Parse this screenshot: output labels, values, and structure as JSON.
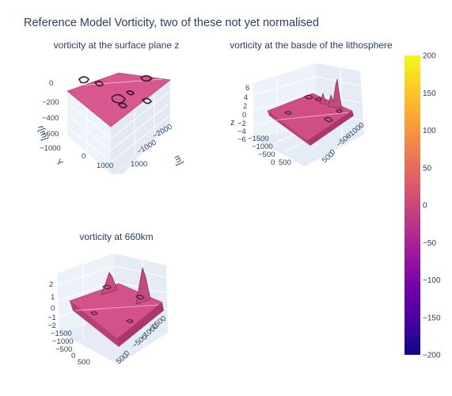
{
  "chart_data": {
    "type": "surface",
    "title": "Reference Model Vorticity, two of these not yet normalised",
    "colorscale": [
      "#0d0887",
      "#46039f",
      "#7201a8",
      "#9c179e",
      "#bd3786",
      "#d8576b",
      "#ed7953",
      "#fb9f3a",
      "#fdca26",
      "#f0f921"
    ],
    "colorbar": {
      "range": [
        -200,
        200
      ],
      "ticks": [
        "200",
        "150",
        "100",
        "50",
        "0",
        "−50",
        "−100",
        "−150",
        "−200"
      ]
    },
    "panels": [
      {
        "subtitle": "vorticity at the surface plane z",
        "z_ticks": [
          "0",
          "−200",
          "−400",
          "−600",
          "−1000"
        ],
        "x_ticks": [
          "−2000",
          "−1000"
        ],
        "y_ticks": [
          "0",
          "1000"
        ],
        "x_axis_fragment": "m]",
        "y_axis_fragment": "Y",
        "z_axis_fragment": "r[m]",
        "surface": "flat plane"
      },
      {
        "subtitle": "vorticity at the basde of the lithosphere",
        "z_ticks": [
          "6",
          "4",
          "2",
          "0",
          "−2",
          "−4",
          "−6"
        ],
        "z_axis_fragment": "z",
        "x_ticks": [
          "−1000",
          "−500",
          "0",
          "500"
        ],
        "y_ticks": [
          "−1500",
          "−1000",
          "−500",
          "0",
          "500"
        ],
        "peaks": [
          6.5,
          5
        ]
      },
      {
        "subtitle": "vorticity at 660km",
        "z_ticks": [
          "2",
          "1",
          "0",
          "−1",
          "−2"
        ],
        "x_ticks": [
          "−1500",
          "−1000",
          "−500",
          "0",
          "500"
        ],
        "y_ticks": [
          "−1500",
          "−1000",
          "−500",
          "0",
          "500"
        ],
        "peaks": [
          2,
          2.5
        ]
      }
    ]
  }
}
